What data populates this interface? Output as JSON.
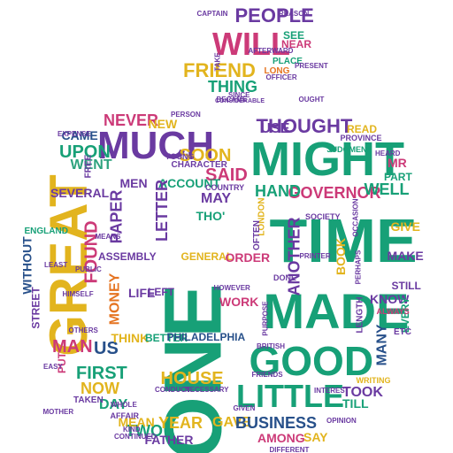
{
  "palette": {
    "green": "#17a077",
    "magenta": "#cc3a78",
    "purple": "#6a3aa1",
    "yellow": "#e2b41e",
    "blue": "#2f8fcb",
    "orange": "#e57421",
    "navy": "#27508a",
    "teal": "#2ea37e",
    "background": "#ffffff"
  },
  "shape": "apple-silhouette",
  "words": [
    {
      "text": "ONE",
      "color": "green"
    },
    {
      "text": "TIME",
      "color": "green"
    },
    {
      "text": "MIGHT",
      "color": "green"
    },
    {
      "text": "MADE",
      "color": "green"
    },
    {
      "text": "GREAT",
      "color": "yellow"
    },
    {
      "text": "MUCH",
      "color": "purple"
    },
    {
      "text": "GOOD",
      "color": "green"
    },
    {
      "text": "LITTLE",
      "color": "green"
    },
    {
      "text": "WILL",
      "color": "magenta"
    },
    {
      "text": "FRIEND",
      "color": "yellow"
    },
    {
      "text": "PEOPLE",
      "color": "purple"
    },
    {
      "text": "THING",
      "color": "green"
    },
    {
      "text": "THOUGHT",
      "color": "purple"
    },
    {
      "text": "SOON",
      "color": "yellow"
    },
    {
      "text": "SAID",
      "color": "magenta"
    },
    {
      "text": "UPON",
      "color": "green"
    },
    {
      "text": "WENT",
      "color": "teal"
    },
    {
      "text": "NEVER",
      "color": "magenta"
    },
    {
      "text": "NEW",
      "color": "yellow"
    },
    {
      "text": "MEN",
      "color": "purple"
    },
    {
      "text": "ACCOUNT",
      "color": "green"
    },
    {
      "text": "LETTER",
      "color": "purple"
    },
    {
      "text": "PAPER",
      "color": "purple"
    },
    {
      "text": "FOUND",
      "color": "magenta"
    },
    {
      "text": "MONEY",
      "color": "orange"
    },
    {
      "text": "WITHOUT",
      "color": "navy"
    },
    {
      "text": "SEVERAL",
      "color": "purple"
    },
    {
      "text": "GOVERNOR",
      "color": "magenta"
    },
    {
      "text": "WELL",
      "color": "green"
    },
    {
      "text": "HAND",
      "color": "green"
    },
    {
      "text": "MAY",
      "color": "purple"
    },
    {
      "text": "THO'",
      "color": "green"
    },
    {
      "text": "ANOTHER",
      "color": "purple"
    },
    {
      "text": "BOOK",
      "color": "yellow"
    },
    {
      "text": "GIVE",
      "color": "yellow"
    },
    {
      "text": "MAKE",
      "color": "purple"
    },
    {
      "text": "STILL",
      "color": "purple"
    },
    {
      "text": "KNOW",
      "color": "purple"
    },
    {
      "text": "EVERY",
      "color": "green"
    },
    {
      "text": "MANY",
      "color": "navy"
    },
    {
      "text": "USE",
      "color": "purple"
    },
    {
      "text": "PART",
      "color": "green"
    },
    {
      "text": "ASSEMBLY",
      "color": "purple"
    },
    {
      "text": "GENERAL",
      "color": "yellow"
    },
    {
      "text": "ORDER",
      "color": "magenta"
    },
    {
      "text": "WORK",
      "color": "magenta"
    },
    {
      "text": "LIFE",
      "color": "purple"
    },
    {
      "text": "LEFT",
      "color": "purple"
    },
    {
      "text": "MAN",
      "color": "magenta"
    },
    {
      "text": "PUT",
      "color": "magenta"
    },
    {
      "text": "US",
      "color": "navy"
    },
    {
      "text": "FIRST",
      "color": "green"
    },
    {
      "text": "NOW",
      "color": "yellow"
    },
    {
      "text": "DAY",
      "color": "green"
    },
    {
      "text": "HOUSE",
      "color": "yellow"
    },
    {
      "text": "YEAR",
      "color": "yellow"
    },
    {
      "text": "TWO",
      "color": "green"
    },
    {
      "text": "FATHER",
      "color": "purple"
    },
    {
      "text": "GAVE",
      "color": "yellow"
    },
    {
      "text": "AMONG",
      "color": "magenta"
    },
    {
      "text": "BUSINESS",
      "color": "navy"
    },
    {
      "text": "SAY",
      "color": "yellow"
    },
    {
      "text": "TOOK",
      "color": "purple"
    },
    {
      "text": "TILL",
      "color": "green"
    },
    {
      "text": "THINK",
      "color": "yellow"
    },
    {
      "text": "BETTER",
      "color": "green"
    },
    {
      "text": "PHILADELPHIA",
      "color": "navy"
    },
    {
      "text": "MEAN",
      "color": "yellow"
    },
    {
      "text": "CAME",
      "color": "navy"
    },
    {
      "text": "STREET",
      "color": "purple"
    },
    {
      "text": "ENGLAND",
      "color": "green"
    },
    {
      "text": "SEE",
      "color": "green"
    },
    {
      "text": "NEAR",
      "color": "magenta"
    },
    {
      "text": "PLACE",
      "color": "green"
    },
    {
      "text": "LONG",
      "color": "orange"
    },
    {
      "text": "LONDON",
      "color": "yellow"
    },
    {
      "text": "CHARACTER",
      "color": "purple"
    },
    {
      "text": "COUNTRY",
      "color": "purple"
    },
    {
      "text": "YOUNG",
      "color": "purple"
    },
    {
      "text": "SOCIETY",
      "color": "purple"
    },
    {
      "text": "MR",
      "color": "magenta"
    },
    {
      "text": "HEARD",
      "color": "purple"
    },
    {
      "text": "READ",
      "color": "yellow"
    },
    {
      "text": "PROVINCE",
      "color": "purple"
    },
    {
      "text": "JUDGMENT",
      "color": "green"
    },
    {
      "text": "OFTEN",
      "color": "purple"
    },
    {
      "text": "DONE",
      "color": "purple"
    },
    {
      "text": "LENGTH",
      "color": "purple"
    },
    {
      "text": "ETC",
      "color": "purple"
    },
    {
      "text": "WRITING",
      "color": "yellow"
    },
    {
      "text": "AFFAIR",
      "color": "purple"
    },
    {
      "text": "CONDUCT",
      "color": "purple"
    },
    {
      "text": "NECESSARY",
      "color": "purple"
    },
    {
      "text": "CONTINUED",
      "color": "purple"
    },
    {
      "text": "KIND",
      "color": "purple"
    },
    {
      "text": "DIFFERENT",
      "color": "purple"
    },
    {
      "text": "GIVEN",
      "color": "purple"
    },
    {
      "text": "BRITISH",
      "color": "purple"
    },
    {
      "text": "PURPOSE",
      "color": "purple"
    },
    {
      "text": "AFTERWARD",
      "color": "purple"
    },
    {
      "text": "REASON",
      "color": "purple"
    },
    {
      "text": "OFFICER",
      "color": "purple"
    },
    {
      "text": "OTHERS",
      "color": "purple"
    },
    {
      "text": "CAPTAIN",
      "color": "purple"
    },
    {
      "text": "PERSON",
      "color": "purple"
    },
    {
      "text": "OPINION",
      "color": "purple"
    },
    {
      "text": "EXPENSE",
      "color": "purple"
    },
    {
      "text": "TAKEN",
      "color": "purple"
    },
    {
      "text": "MOTHER",
      "color": "purple"
    },
    {
      "text": "EASY",
      "color": "purple"
    },
    {
      "text": "LEAST",
      "color": "purple"
    },
    {
      "text": "HIMSELF",
      "color": "purple"
    },
    {
      "text": "OUGHT",
      "color": "purple"
    },
    {
      "text": "CONSIDERABLE",
      "color": "purple"
    },
    {
      "text": "PUBLIC",
      "color": "purple"
    },
    {
      "text": "FREE",
      "color": "purple"
    },
    {
      "text": "PRINTER",
      "color": "purple"
    },
    {
      "text": "PERHAPS",
      "color": "purple"
    },
    {
      "text": "OCCASION",
      "color": "purple"
    },
    {
      "text": "PRESENT",
      "color": "purple"
    },
    {
      "text": "SINCE",
      "color": "purple"
    },
    {
      "text": "BECAME",
      "color": "purple"
    },
    {
      "text": "TAKE",
      "color": "purple"
    },
    {
      "text": "ALWAYS",
      "color": "magenta"
    },
    {
      "text": "INTEREST",
      "color": "purple"
    },
    {
      "text": "MEANS",
      "color": "purple"
    },
    {
      "text": "WHOLE",
      "color": "purple"
    },
    {
      "text": "HOWEVER",
      "color": "purple"
    },
    {
      "text": "FRIENDS",
      "color": "purple"
    }
  ]
}
